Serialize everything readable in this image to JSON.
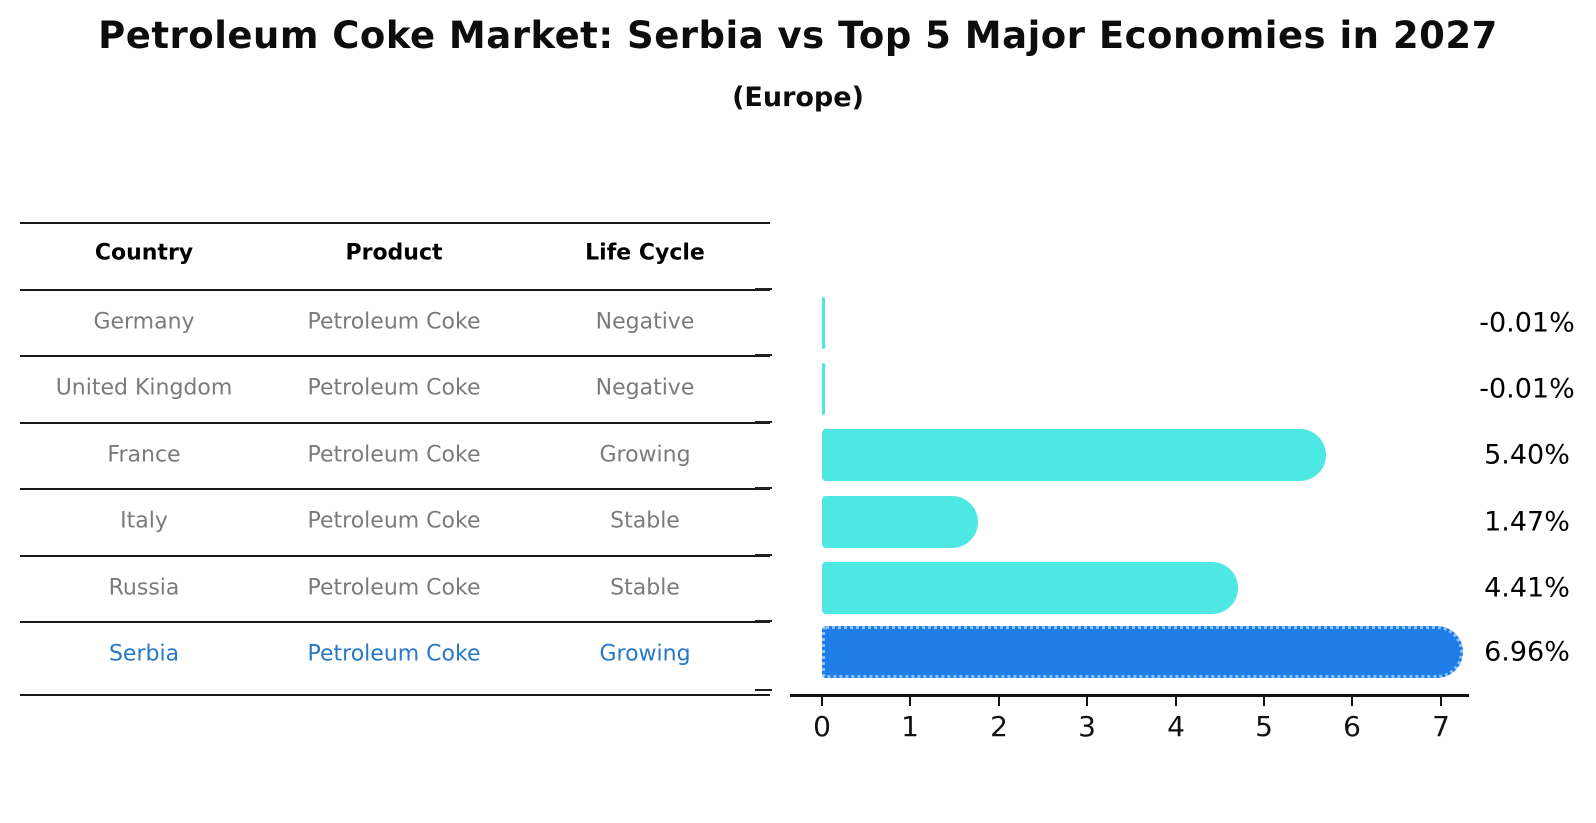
{
  "title": "Petroleum Coke Market: Serbia vs Top 5 Major Economies in 2027",
  "subtitle": "(Europe)",
  "table": {
    "headers": [
      "Country",
      "Product",
      "Life Cycle"
    ],
    "rows": [
      {
        "country": "Germany",
        "product": "Petroleum Coke",
        "life_cycle": "Negative"
      },
      {
        "country": "United Kingdom",
        "product": "Petroleum Coke",
        "life_cycle": "Negative"
      },
      {
        "country": "France",
        "product": "Petroleum Coke",
        "life_cycle": "Growing"
      },
      {
        "country": "Italy",
        "product": "Petroleum Coke",
        "life_cycle": "Stable"
      },
      {
        "country": "Russia",
        "product": "Petroleum Coke",
        "life_cycle": "Stable"
      },
      {
        "country": "Serbia",
        "product": "Petroleum Coke",
        "life_cycle": "Growing"
      }
    ],
    "highlight_row": "Serbia"
  },
  "chart_data": {
    "type": "bar",
    "orientation": "horizontal",
    "categories": [
      "Germany",
      "United Kingdom",
      "France",
      "Italy",
      "Russia",
      "Serbia"
    ],
    "values": [
      -0.01,
      -0.01,
      5.4,
      1.47,
      4.41,
      6.96
    ],
    "value_labels": [
      "-0.01%",
      "-0.01%",
      "5.40%",
      "1.47%",
      "4.41%",
      "6.96%"
    ],
    "x_ticks": [
      0,
      1,
      2,
      3,
      4,
      5,
      6,
      7
    ],
    "xlim": [
      0,
      7.4
    ],
    "grid": "off",
    "legend": "none",
    "highlight_index": 5,
    "bar_color_default": "#4de8e4",
    "bar_color_highlight": "#1f7de8",
    "bar_border_highlight": "#8cc3f6",
    "highlight_text_color": "#2878c8"
  }
}
